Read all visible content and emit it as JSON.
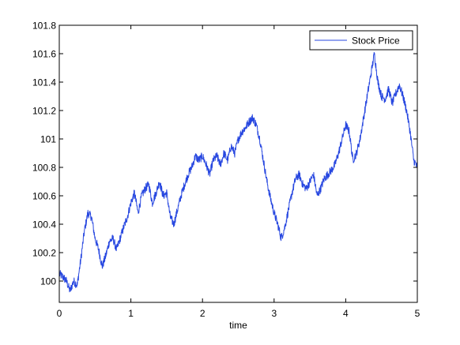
{
  "chart_data": {
    "type": "line",
    "title": "",
    "xlabel": "time",
    "ylabel": "",
    "xlim": [
      0,
      5
    ],
    "ylim": [
      99.85,
      101.8
    ],
    "x_ticks": [
      0,
      1,
      2,
      3,
      4,
      5
    ],
    "x_tick_labels": [
      "0",
      "1",
      "2",
      "3",
      "4",
      "5"
    ],
    "y_ticks": [
      100.0,
      100.2,
      100.4,
      100.6,
      100.8,
      101.0,
      101.2,
      101.4,
      101.6,
      101.8
    ],
    "y_tick_labels": [
      "100",
      "100.2",
      "100.4",
      "100.6",
      "100.8",
      "101",
      "101.2",
      "101.4",
      "101.6",
      "101.8"
    ],
    "grid": false,
    "legend_position": "top-right",
    "series": [
      {
        "name": "Stock Price",
        "color": "#2747e0",
        "x": [
          0.0,
          0.05,
          0.1,
          0.15,
          0.2,
          0.25,
          0.3,
          0.35,
          0.4,
          0.45,
          0.5,
          0.55,
          0.6,
          0.65,
          0.7,
          0.75,
          0.8,
          0.85,
          0.9,
          0.95,
          1.0,
          1.05,
          1.1,
          1.15,
          1.2,
          1.25,
          1.3,
          1.35,
          1.4,
          1.45,
          1.5,
          1.55,
          1.6,
          1.65,
          1.7,
          1.75,
          1.8,
          1.85,
          1.9,
          1.95,
          2.0,
          2.05,
          2.1,
          2.15,
          2.2,
          2.25,
          2.3,
          2.35,
          2.4,
          2.45,
          2.5,
          2.55,
          2.6,
          2.65,
          2.7,
          2.75,
          2.8,
          2.85,
          2.9,
          2.95,
          3.0,
          3.05,
          3.1,
          3.15,
          3.2,
          3.25,
          3.3,
          3.35,
          3.4,
          3.45,
          3.5,
          3.55,
          3.6,
          3.65,
          3.7,
          3.75,
          3.8,
          3.85,
          3.9,
          3.95,
          4.0,
          4.05,
          4.1,
          4.15,
          4.2,
          4.25,
          4.3,
          4.35,
          4.4,
          4.45,
          4.5,
          4.55,
          4.6,
          4.65,
          4.7,
          4.75,
          4.8,
          4.85,
          4.9,
          4.95,
          5.0
        ],
        "y": [
          100.05,
          100.03,
          100.0,
          99.93,
          100.0,
          99.97,
          100.15,
          100.35,
          100.48,
          100.45,
          100.3,
          100.22,
          100.1,
          100.18,
          100.28,
          100.3,
          100.22,
          100.3,
          100.38,
          100.45,
          100.55,
          100.62,
          100.48,
          100.6,
          100.65,
          100.68,
          100.55,
          100.62,
          100.7,
          100.6,
          100.62,
          100.45,
          100.4,
          100.5,
          100.6,
          100.68,
          100.75,
          100.8,
          100.88,
          100.85,
          100.88,
          100.82,
          100.75,
          100.85,
          100.88,
          100.82,
          100.9,
          100.85,
          100.95,
          100.9,
          101.0,
          101.05,
          101.08,
          101.12,
          101.15,
          101.1,
          101.0,
          100.85,
          100.7,
          100.58,
          100.48,
          100.4,
          100.3,
          100.38,
          100.5,
          100.62,
          100.72,
          100.75,
          100.68,
          100.65,
          100.7,
          100.75,
          100.6,
          100.65,
          100.72,
          100.75,
          100.78,
          100.82,
          100.9,
          101.0,
          101.1,
          101.05,
          100.85,
          100.9,
          101.0,
          101.15,
          101.3,
          101.45,
          101.6,
          101.4,
          101.3,
          101.28,
          101.35,
          101.25,
          101.32,
          101.38,
          101.3,
          101.2,
          101.05,
          100.85,
          100.8
        ]
      }
    ]
  }
}
